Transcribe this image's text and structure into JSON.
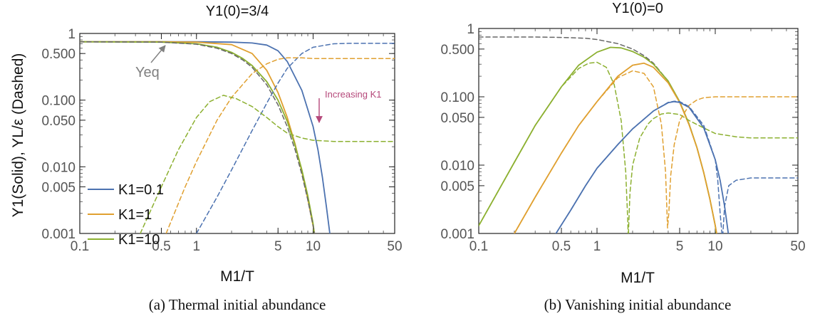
{
  "figure": {
    "captions": [
      "(a) Thermal initial abundance",
      "(b) Vanishing initial abundance"
    ],
    "shared_ylabel": "Y1(Solid), YL/ε (Dashed)"
  },
  "chart_data": [
    {
      "type": "line",
      "title": "Y1(0)=3/4",
      "xlabel": "M1/T",
      "ylabel": "Y1(Solid), YL/ε (Dashed)",
      "xscale": "log",
      "yscale": "log",
      "xlim": [
        0.1,
        50
      ],
      "ylim": [
        0.001,
        1
      ],
      "x_ticks": [
        0.1,
        0.5,
        1,
        5,
        10,
        50
      ],
      "x_tick_labels": [
        "0.1",
        "0.5",
        "1",
        "5",
        "10",
        "50"
      ],
      "y_ticks": [
        0.001,
        0.005,
        0.01,
        0.05,
        0.1,
        0.5,
        1
      ],
      "y_tick_labels": [
        "0.001",
        "0.005",
        "0.010",
        "0.050",
        "0.100",
        "0.500",
        "1"
      ],
      "legend": {
        "placement": "left-middle",
        "entries": [
          "K1=0.1",
          "K1=1",
          "K1=10"
        ]
      },
      "annotations": [
        {
          "text": "Yeq",
          "x": 0.5,
          "y": 0.33
        },
        {
          "text": "Increasing K1",
          "x": 20,
          "y": 0.12
        }
      ],
      "series": [
        {
          "name": "K1=0.1",
          "color": "#4c72b0",
          "style": "solid",
          "x": [
            0.1,
            0.5,
            1,
            2,
            3,
            4,
            5,
            6,
            8,
            10,
            11,
            12,
            13,
            14
          ],
          "y": [
            0.75,
            0.75,
            0.75,
            0.74,
            0.72,
            0.67,
            0.55,
            0.38,
            0.14,
            0.04,
            0.018,
            0.007,
            0.0025,
            0.0009
          ]
        },
        {
          "name": "K1=1",
          "color": "#e0a030",
          "style": "solid",
          "x": [
            0.1,
            0.5,
            1,
            2,
            3,
            4,
            5,
            6,
            7,
            8,
            9,
            10,
            10.4
          ],
          "y": [
            0.75,
            0.75,
            0.74,
            0.68,
            0.5,
            0.28,
            0.13,
            0.055,
            0.022,
            0.0085,
            0.0033,
            0.0013,
            0.0009
          ]
        },
        {
          "name": "K1=10",
          "color": "#8cb030",
          "style": "solid",
          "x": [
            0.1,
            0.5,
            1,
            1.5,
            2,
            2.5,
            3,
            4,
            5,
            6,
            7,
            8,
            9,
            10,
            10.3
          ],
          "y": [
            0.75,
            0.74,
            0.7,
            0.62,
            0.52,
            0.42,
            0.33,
            0.19,
            0.1,
            0.048,
            0.021,
            0.009,
            0.0037,
            0.0014,
            0.0009
          ]
        },
        {
          "name": "K1=0.1",
          "color": "#4c72b0",
          "style": "dashed",
          "x": [
            1,
            1.5,
            2,
            3,
            4,
            5,
            6,
            8,
            10,
            15,
            20,
            50
          ],
          "y": [
            0.001,
            0.0035,
            0.009,
            0.035,
            0.09,
            0.18,
            0.3,
            0.5,
            0.62,
            0.7,
            0.71,
            0.71
          ]
        },
        {
          "name": "K1=1",
          "color": "#e0a030",
          "style": "dashed",
          "x": [
            0.55,
            0.8,
            1,
            1.5,
            2,
            3,
            4,
            5,
            6,
            8,
            10,
            50
          ],
          "y": [
            0.001,
            0.005,
            0.012,
            0.05,
            0.11,
            0.25,
            0.35,
            0.41,
            0.43,
            0.43,
            0.42,
            0.42
          ]
        },
        {
          "name": "K1=10",
          "color": "#8cb030",
          "style": "dashed",
          "x": [
            0.33,
            0.5,
            0.7,
            1,
            1.3,
            1.7,
            2.2,
            3,
            4,
            5,
            6,
            8,
            10,
            15,
            50
          ],
          "y": [
            0.001,
            0.005,
            0.018,
            0.055,
            0.095,
            0.118,
            0.105,
            0.08,
            0.055,
            0.04,
            0.032,
            0.027,
            0.025,
            0.024,
            0.024
          ]
        },
        {
          "name": "Yeq",
          "color": "#666666",
          "style": "dashed",
          "x": [
            0.1,
            0.5,
            1,
            1.5,
            2,
            2.5,
            3,
            4,
            5,
            6,
            7,
            8,
            9,
            10,
            10.4
          ],
          "y": [
            0.75,
            0.74,
            0.69,
            0.6,
            0.5,
            0.4,
            0.31,
            0.17,
            0.085,
            0.04,
            0.018,
            0.0077,
            0.0032,
            0.0013,
            0.0009
          ]
        }
      ]
    },
    {
      "type": "line",
      "title": "Y1(0)=0",
      "xlabel": "M1/T",
      "ylabel": "",
      "xscale": "log",
      "yscale": "log",
      "xlim": [
        0.1,
        50
      ],
      "ylim": [
        0.001,
        1
      ],
      "x_ticks": [
        0.1,
        0.5,
        1,
        5,
        10,
        50
      ],
      "x_tick_labels": [
        "0.1",
        "0.5",
        "1",
        "5",
        "10",
        "50"
      ],
      "y_ticks": [
        0.001,
        0.005,
        0.01,
        0.05,
        0.1,
        0.5,
        1
      ],
      "y_tick_labels": [
        "0.001",
        "0.005",
        "0.010",
        "0.050",
        "0.100",
        "0.500",
        "1"
      ],
      "series": [
        {
          "name": "Yeq",
          "color": "#666666",
          "style": "dashed",
          "x": [
            0.1,
            0.3,
            0.5,
            0.8,
            1,
            1.5,
            2,
            2.5,
            3,
            4,
            5,
            6,
            7,
            8,
            9,
            10,
            10.4
          ],
          "y": [
            0.75,
            0.75,
            0.74,
            0.72,
            0.69,
            0.6,
            0.5,
            0.4,
            0.31,
            0.17,
            0.085,
            0.04,
            0.018,
            0.0077,
            0.0032,
            0.0013,
            0.0009
          ]
        },
        {
          "name": "K1=10",
          "color": "#8cb030",
          "style": "solid",
          "x": [
            0.1,
            0.2,
            0.3,
            0.5,
            0.7,
            1,
            1.3,
            1.6,
            2,
            2.5,
            3,
            4,
            5,
            6,
            7,
            8,
            9,
            10,
            10.3
          ],
          "y": [
            0.0013,
            0.011,
            0.038,
            0.14,
            0.29,
            0.45,
            0.53,
            0.52,
            0.46,
            0.38,
            0.3,
            0.17,
            0.085,
            0.04,
            0.018,
            0.0077,
            0.0032,
            0.0013,
            0.0009
          ]
        },
        {
          "name": "K1=1",
          "color": "#e0a030",
          "style": "solid",
          "x": [
            0.2,
            0.3,
            0.5,
            0.7,
            1,
            1.5,
            2,
            2.5,
            3,
            4,
            5,
            6,
            7,
            8,
            9,
            10,
            10.4
          ],
          "y": [
            0.001,
            0.0034,
            0.015,
            0.038,
            0.085,
            0.2,
            0.29,
            0.31,
            0.27,
            0.16,
            0.083,
            0.039,
            0.018,
            0.0077,
            0.0032,
            0.0013,
            0.0009
          ]
        },
        {
          "name": "K1=0.1",
          "color": "#4c72b0",
          "style": "solid",
          "x": [
            0.45,
            0.6,
            0.8,
            1,
            1.5,
            2,
            3,
            4,
            4.5,
            5,
            6,
            8,
            10,
            11,
            12,
            13
          ],
          "y": [
            0.001,
            0.0022,
            0.005,
            0.009,
            0.02,
            0.034,
            0.062,
            0.082,
            0.085,
            0.083,
            0.07,
            0.035,
            0.012,
            0.006,
            0.0025,
            0.0009
          ]
        },
        {
          "name": "K1=10",
          "color": "#8cb030",
          "style": "dashed",
          "x": [
            0.1,
            0.2,
            0.3,
            0.5,
            0.7,
            0.85,
            1,
            1.2,
            1.4,
            1.6,
            1.75,
            1.82,
            1.84,
            1.86,
            1.9,
            2,
            2.3,
            2.7,
            3,
            3.5,
            4,
            5,
            6,
            8,
            10,
            15,
            20,
            50
          ],
          "y": [
            0.0013,
            0.011,
            0.038,
            0.14,
            0.26,
            0.31,
            0.32,
            0.27,
            0.15,
            0.045,
            0.008,
            0.0015,
            0.0008,
            0.0015,
            0.004,
            0.01,
            0.025,
            0.04,
            0.048,
            0.056,
            0.058,
            0.055,
            0.045,
            0.035,
            0.029,
            0.026,
            0.025,
            0.025
          ]
        },
        {
          "name": "K1=1",
          "color": "#e0a030",
          "style": "dashed",
          "x": [
            0.2,
            0.3,
            0.5,
            0.7,
            1,
            1.5,
            2,
            2.5,
            3,
            3.5,
            3.8,
            3.95,
            4.05,
            4.2,
            4.5,
            5,
            6,
            7,
            8,
            10,
            15,
            20,
            50
          ],
          "y": [
            0.001,
            0.0034,
            0.015,
            0.038,
            0.085,
            0.19,
            0.24,
            0.22,
            0.14,
            0.04,
            0.008,
            0.0012,
            0.002,
            0.007,
            0.02,
            0.045,
            0.075,
            0.09,
            0.097,
            0.1,
            0.1,
            0.1,
            0.1
          ]
        },
        {
          "name": "K1=0.1",
          "color": "#4c72b0",
          "style": "dashed",
          "x": [
            0.45,
            0.6,
            0.8,
            1,
            1.5,
            2,
            3,
            4,
            4.5,
            5,
            6,
            8,
            10,
            10.5,
            11,
            11.5,
            12,
            13,
            15,
            20,
            50
          ],
          "y": [
            0.001,
            0.0022,
            0.005,
            0.009,
            0.02,
            0.034,
            0.062,
            0.083,
            0.086,
            0.085,
            0.072,
            0.038,
            0.012,
            0.006,
            0.002,
            0.0008,
            0.0025,
            0.005,
            0.006,
            0.0065,
            0.0065
          ]
        }
      ]
    }
  ]
}
